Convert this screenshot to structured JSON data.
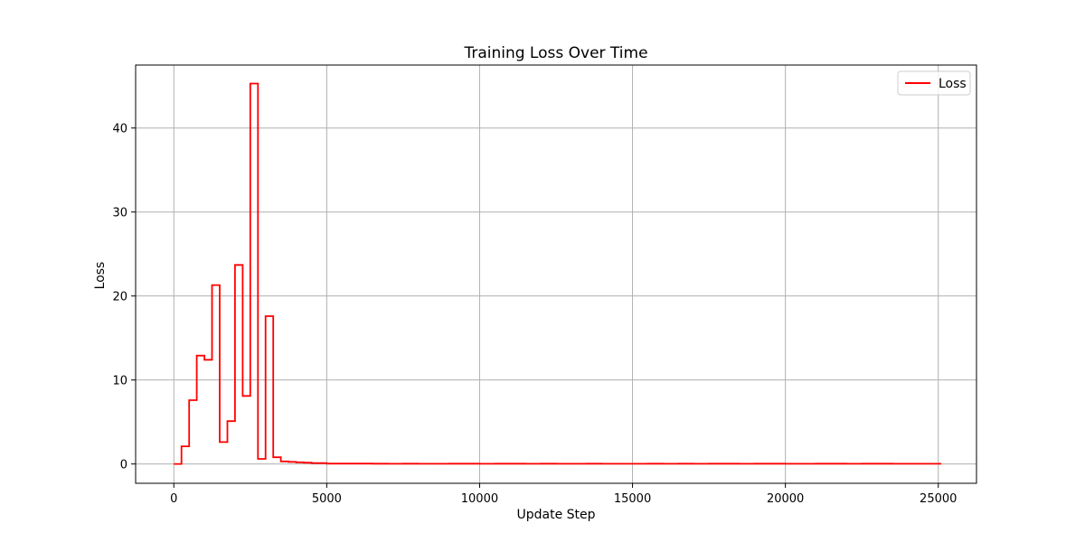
{
  "chart_data": {
    "type": "line",
    "title": "Training Loss Over Time",
    "xlabel": "Update Step",
    "ylabel": "Loss",
    "xlim": [
      -1250,
      26250
    ],
    "ylim": [
      -2.3,
      47.5
    ],
    "xticks": [
      0,
      5000,
      10000,
      15000,
      20000,
      25000
    ],
    "yticks": [
      0,
      10,
      20,
      30,
      40
    ],
    "grid": true,
    "legend_position": "top-right",
    "step": "post",
    "series": [
      {
        "name": "Loss",
        "color": "#ff0000",
        "x": [
          0,
          250,
          500,
          750,
          1000,
          1250,
          1500,
          1750,
          2000,
          2250,
          2500,
          2750,
          3000,
          3250,
          3500,
          3750,
          4000,
          4250,
          4500,
          5000,
          5500,
          6000,
          6500,
          7000,
          7500,
          8000,
          8500,
          9000,
          9500,
          10000,
          10500,
          11000,
          11500,
          12000,
          12500,
          13000,
          13500,
          14000,
          14500,
          15000,
          15500,
          16000,
          16500,
          17000,
          17500,
          18000,
          18500,
          19000,
          19500,
          20000,
          20500,
          21000,
          21500,
          22000,
          22500,
          23000,
          23500,
          24000,
          24500,
          25000,
          25100
        ],
        "values": [
          0.0,
          2.1,
          7.6,
          12.9,
          12.4,
          21.3,
          2.6,
          5.1,
          23.7,
          8.1,
          45.3,
          0.6,
          17.6,
          0.8,
          0.3,
          0.25,
          0.2,
          0.15,
          0.1,
          0.05,
          0.05,
          0.04,
          0.03,
          0.02,
          0.03,
          0.02,
          0.02,
          0.03,
          0.03,
          0.02,
          0.03,
          0.03,
          0.02,
          0.03,
          0.02,
          0.02,
          0.03,
          0.02,
          0.02,
          0.02,
          0.03,
          0.02,
          0.03,
          0.02,
          0.03,
          0.03,
          0.02,
          0.03,
          0.03,
          0.02,
          0.02,
          0.03,
          0.03,
          0.02,
          0.03,
          0.03,
          0.02,
          0.02,
          0.02,
          0.02,
          0.02
        ]
      }
    ]
  }
}
